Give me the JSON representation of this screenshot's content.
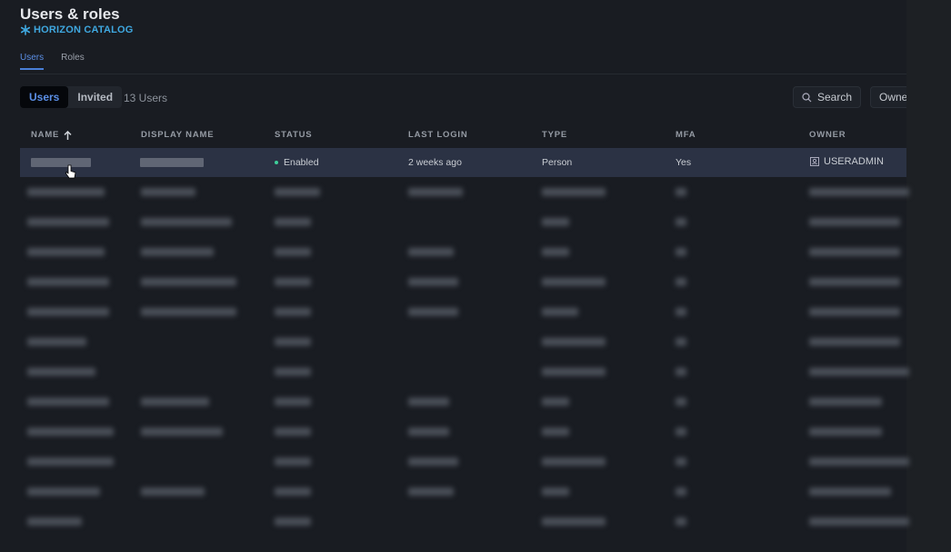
{
  "header": {
    "title": "Users & roles",
    "brand": "HORIZON CATALOG",
    "brand_icon": "snowflake-icon",
    "brand_color": "#3fa8e0"
  },
  "tabs": [
    {
      "label": "Users",
      "active": true
    },
    {
      "label": "Roles",
      "active": false
    }
  ],
  "filter": {
    "segments": [
      {
        "label": "Users",
        "active": true
      },
      {
        "label": "Invited",
        "active": false
      }
    ],
    "count": "13 Users",
    "search_label": "Search",
    "owner_label": "Owne"
  },
  "table": {
    "columns": [
      "NAME",
      "DISPLAY NAME",
      "STATUS",
      "LAST LOGIN",
      "TYPE",
      "MFA",
      "OWNER"
    ],
    "sort": {
      "column": "NAME",
      "direction": "ascending"
    },
    "rows": [
      {
        "status": "Enabled",
        "last_login": "2 weeks ago",
        "type": "Person",
        "mfa": "Yes",
        "owner": "USERADMIN"
      }
    ]
  },
  "colors": {
    "status_enabled": "#3ecf9a",
    "accent": "#5b8fe6"
  }
}
